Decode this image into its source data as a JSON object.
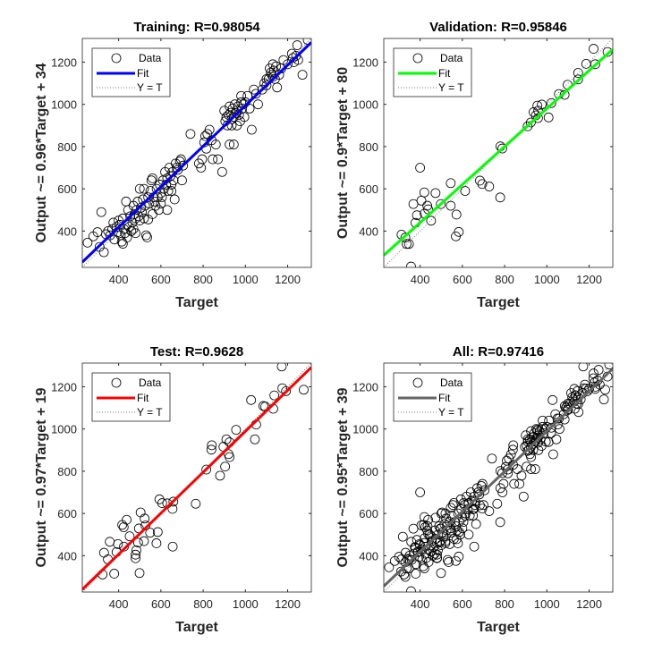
{
  "chart_data": [
    {
      "type": "scatter",
      "title": "Training: R=0.98054",
      "xlabel": "Target",
      "ylabel": "Output ~= 0.96*Target + 34",
      "xlim": [
        228,
        1312
      ],
      "ylim": [
        228,
        1312
      ],
      "xticks": [
        400,
        600,
        800,
        1000,
        1200
      ],
      "yticks": [
        400,
        600,
        800,
        1000,
        1200
      ],
      "grid": false,
      "legend_placement": "top-left",
      "legend": [
        "Data",
        "Fit",
        "Y = T"
      ],
      "fit": {
        "slope": 0.96,
        "intercept": 34,
        "color": "#0000ff"
      },
      "points": [
        [
          253,
          345
        ],
        [
          280,
          375
        ],
        [
          300,
          395
        ],
        [
          310,
          325
        ],
        [
          318,
          490
        ],
        [
          330,
          300
        ],
        [
          340,
          385
        ],
        [
          350,
          400
        ],
        [
          360,
          380
        ],
        [
          370,
          410
        ],
        [
          375,
          440
        ],
        [
          380,
          360
        ],
        [
          390,
          420
        ],
        [
          395,
          395
        ],
        [
          400,
          450
        ],
        [
          405,
          430
        ],
        [
          410,
          380
        ],
        [
          415,
          350
        ],
        [
          420,
          460
        ],
        [
          425,
          410
        ],
        [
          430,
          390
        ],
        [
          435,
          540
        ],
        [
          440,
          430
        ],
        [
          445,
          500
        ],
        [
          450,
          420
        ],
        [
          455,
          470
        ],
        [
          460,
          400
        ],
        [
          465,
          440
        ],
        [
          470,
          520
        ],
        [
          475,
          480
        ],
        [
          480,
          460
        ],
        [
          485,
          500
        ],
        [
          490,
          540
        ],
        [
          495,
          470
        ],
        [
          500,
          600
        ],
        [
          505,
          510
        ],
        [
          510,
          490
        ],
        [
          515,
          550
        ],
        [
          520,
          460
        ],
        [
          525,
          520
        ],
        [
          530,
          380
        ],
        [
          535,
          370
        ],
        [
          540,
          560
        ],
        [
          545,
          530
        ],
        [
          550,
          590
        ],
        [
          555,
          640
        ],
        [
          560,
          650
        ],
        [
          565,
          560
        ],
        [
          570,
          540
        ],
        [
          575,
          520
        ],
        [
          580,
          600
        ],
        [
          585,
          560
        ],
        [
          590,
          500
        ],
        [
          595,
          620
        ],
        [
          600,
          580
        ],
        [
          605,
          560
        ],
        [
          610,
          640
        ],
        [
          615,
          600
        ],
        [
          620,
          680
        ],
        [
          625,
          620
        ],
        [
          630,
          650
        ],
        [
          635,
          590
        ],
        [
          640,
          700
        ],
        [
          645,
          660
        ],
        [
          650,
          620
        ],
        [
          655,
          680
        ],
        [
          660,
          640
        ],
        [
          665,
          550
        ],
        [
          670,
          720
        ],
        [
          675,
          700
        ],
        [
          680,
          690
        ],
        [
          690,
          730
        ],
        [
          695,
          740
        ],
        [
          700,
          640
        ],
        [
          705,
          710
        ],
        [
          630,
          500
        ],
        [
          540,
          455
        ],
        [
          520,
          600
        ],
        [
          480,
          390
        ],
        [
          440,
          370
        ],
        [
          420,
          340
        ],
        [
          470,
          410
        ],
        [
          500,
          450
        ],
        [
          560,
          480
        ],
        [
          600,
          530
        ],
        [
          650,
          590
        ],
        [
          740,
          860
        ],
        [
          780,
          720
        ],
        [
          790,
          700
        ],
        [
          795,
          740
        ],
        [
          805,
          820
        ],
        [
          810,
          850
        ],
        [
          815,
          790
        ],
        [
          820,
          860
        ],
        [
          830,
          880
        ],
        [
          840,
          830
        ],
        [
          845,
          740
        ],
        [
          860,
          810
        ],
        [
          870,
          740
        ],
        [
          890,
          680
        ],
        [
          900,
          970
        ],
        [
          905,
          920
        ],
        [
          910,
          940
        ],
        [
          915,
          900
        ],
        [
          920,
          950
        ],
        [
          925,
          990
        ],
        [
          930,
          960
        ],
        [
          935,
          930
        ],
        [
          940,
          980
        ],
        [
          945,
          940
        ],
        [
          950,
          1000
        ],
        [
          955,
          960
        ],
        [
          960,
          970
        ],
        [
          965,
          990
        ],
        [
          970,
          950
        ],
        [
          975,
          920
        ],
        [
          980,
          1010
        ],
        [
          985,
          980
        ],
        [
          990,
          1000
        ],
        [
          995,
          940
        ],
        [
          1000,
          1010
        ],
        [
          1010,
          1040
        ],
        [
          1020,
          980
        ],
        [
          1030,
          880
        ],
        [
          1040,
          1070
        ],
        [
          1050,
          1050
        ],
        [
          1060,
          1000
        ],
        [
          925,
          810
        ],
        [
          945,
          810
        ],
        [
          935,
          900
        ],
        [
          960,
          900
        ],
        [
          980,
          1040
        ],
        [
          1080,
          1070
        ],
        [
          1090,
          1100
        ],
        [
          1100,
          1090
        ],
        [
          1110,
          1120
        ],
        [
          1115,
          1170
        ],
        [
          1120,
          1150
        ],
        [
          1125,
          1140
        ],
        [
          1130,
          1190
        ],
        [
          1135,
          1160
        ],
        [
          1140,
          1120
        ],
        [
          1145,
          1180
        ],
        [
          1150,
          1080
        ],
        [
          1160,
          1140
        ],
        [
          1170,
          1170
        ],
        [
          1180,
          1210
        ],
        [
          1200,
          1190
        ],
        [
          1220,
          1240
        ],
        [
          1225,
          1220
        ],
        [
          1230,
          1200
        ],
        [
          1240,
          1230
        ],
        [
          1245,
          1280
        ],
        [
          1250,
          1210
        ],
        [
          1270,
          1140
        ],
        [
          1295,
          1305
        ],
        [
          1100,
          1120
        ],
        [
          1130,
          1130
        ]
      ]
    },
    {
      "type": "scatter",
      "title": "Validation: R=0.95846",
      "xlabel": "Target",
      "ylabel": "Output ~= 0.9*Target + 80",
      "xlim": [
        228,
        1312
      ],
      "ylim": [
        228,
        1312
      ],
      "xticks": [
        400,
        600,
        800,
        1000,
        1200
      ],
      "yticks": [
        400,
        600,
        800,
        1000,
        1200
      ],
      "grid": false,
      "legend_placement": "top-left",
      "legend": [
        "Data",
        "Fit",
        "Y = T"
      ],
      "fit": {
        "slope": 0.9,
        "intercept": 80,
        "color": "#00ff00"
      },
      "points": [
        [
          1287,
          1248
        ],
        [
          1221,
          1263
        ],
        [
          1229,
          1190
        ],
        [
          1186,
          1192
        ],
        [
          1148,
          1149
        ],
        [
          1148,
          1118
        ],
        [
          1098,
          1093
        ],
        [
          1084,
          1045
        ],
        [
          1057,
          1049
        ],
        [
          1021,
          1006
        ],
        [
          1008,
          938
        ],
        [
          976,
          999
        ],
        [
          955,
          994
        ],
        [
          959,
          970
        ],
        [
          948,
          948
        ],
        [
          937,
          963
        ],
        [
          924,
          914
        ],
        [
          909,
          896
        ],
        [
          958,
          935
        ],
        [
          780,
          801
        ],
        [
          789,
          791
        ],
        [
          400,
          700
        ],
        [
          545,
          627
        ],
        [
          683,
          639
        ],
        [
          694,
          623
        ],
        [
          727,
          611
        ],
        [
          613,
          590
        ],
        [
          779,
          559
        ],
        [
          473,
          580
        ],
        [
          420,
          583
        ],
        [
          406,
          544
        ],
        [
          368,
          528
        ],
        [
          434,
          520
        ],
        [
          438,
          503
        ],
        [
          498,
          528
        ],
        [
          545,
          520
        ],
        [
          421,
          483
        ],
        [
          385,
          475
        ],
        [
          452,
          449
        ],
        [
          378,
          439
        ],
        [
          572,
          478
        ],
        [
          583,
          396
        ],
        [
          569,
          375
        ],
        [
          312,
          383
        ],
        [
          330,
          369
        ],
        [
          336,
          339
        ],
        [
          347,
          339
        ],
        [
          357,
          232
        ]
      ]
    },
    {
      "type": "scatter",
      "title": "Test: R=0.9628",
      "xlabel": "Target",
      "ylabel": "Output ~= 0.97*Target + 19",
      "xlim": [
        228,
        1312
      ],
      "ylim": [
        228,
        1312
      ],
      "xticks": [
        400,
        600,
        800,
        1000,
        1200
      ],
      "yticks": [
        400,
        600,
        800,
        1000,
        1200
      ],
      "grid": false,
      "legend_placement": "top-left",
      "legend": [
        "Data",
        "Fit",
        "Y = T"
      ],
      "fit": {
        "slope": 0.97,
        "intercept": 19,
        "color": "#ff0000"
      },
      "points": [
        [
          1172,
          1296
        ],
        [
          1175,
          1193
        ],
        [
          1192,
          1179
        ],
        [
          1276,
          1186
        ],
        [
          1027,
          1137
        ],
        [
          1137,
          1159
        ],
        [
          1085,
          1109
        ],
        [
          1094,
          1106
        ],
        [
          1132,
          1096
        ],
        [
          1051,
          1021
        ],
        [
          1045,
          951
        ],
        [
          956,
          996
        ],
        [
          910,
          951
        ],
        [
          925,
          937
        ],
        [
          896,
          916
        ],
        [
          841,
          923
        ],
        [
          839,
          902
        ],
        [
          920,
          881
        ],
        [
          925,
          867
        ],
        [
          904,
          822
        ],
        [
          880,
          779
        ],
        [
          815,
          808
        ],
        [
          765,
          646
        ],
        [
          593,
          667
        ],
        [
          606,
          649
        ],
        [
          630,
          648
        ],
        [
          659,
          656
        ],
        [
          655,
          622
        ],
        [
          504,
          605
        ],
        [
          438,
          570
        ],
        [
          417,
          546
        ],
        [
          424,
          535
        ],
        [
          523,
          576
        ],
        [
          527,
          543
        ],
        [
          496,
          529
        ],
        [
          549,
          509
        ],
        [
          585,
          512
        ],
        [
          452,
          492
        ],
        [
          492,
          462
        ],
        [
          520,
          469
        ],
        [
          579,
          459
        ],
        [
          656,
          443
        ],
        [
          358,
          466
        ],
        [
          397,
          455
        ],
        [
          425,
          443
        ],
        [
          390,
          417
        ],
        [
          331,
          414
        ],
        [
          349,
          383
        ],
        [
          484,
          426
        ],
        [
          480,
          405
        ],
        [
          480,
          388
        ],
        [
          324,
          311
        ],
        [
          379,
          315
        ],
        [
          499,
          318
        ]
      ]
    },
    {
      "type": "scatter",
      "title": "All: R=0.97416",
      "xlabel": "Target",
      "ylabel": "Output ~= 0.95*Target + 39",
      "xlim": [
        228,
        1312
      ],
      "ylim": [
        228,
        1312
      ],
      "xticks": [
        400,
        600,
        800,
        1000,
        1200
      ],
      "yticks": [
        400,
        600,
        800,
        1000,
        1200
      ],
      "grid": false,
      "legend_placement": "top-left",
      "legend": [
        "Data",
        "Fit",
        "Y = T"
      ],
      "fit": {
        "slope": 0.95,
        "intercept": 39,
        "color": "#666666"
      },
      "points_include": [
        "Training",
        "Validation",
        "Test"
      ]
    }
  ]
}
